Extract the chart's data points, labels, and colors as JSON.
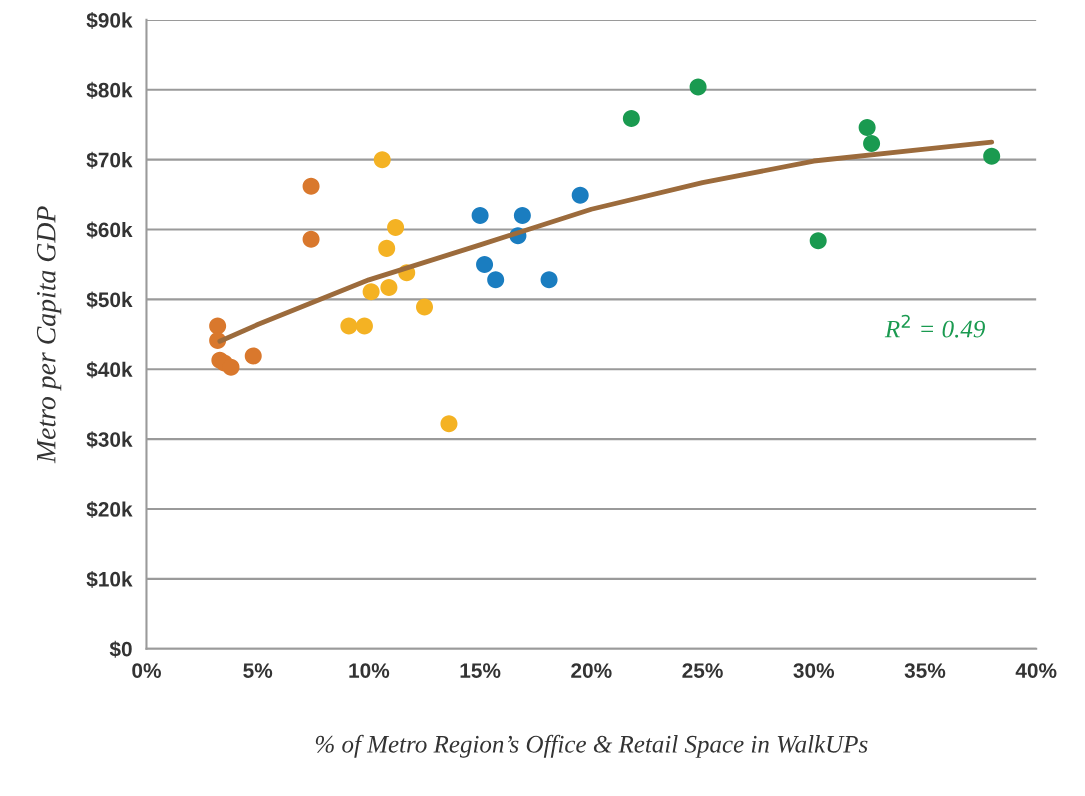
{
  "chart_data": {
    "type": "scatter",
    "xlabel": "% of Metro Region’s Office & Retail Space in WalkUPs",
    "ylabel": "Metro per Capita GDP",
    "annotations": [
      "R$^{2}$ = 0.49"
    ],
    "series": [
      {
        "color": "#d9782d",
        "x": [
          3.2,
          3.2,
          3.3,
          3.5,
          3.8,
          4.8,
          7.4,
          7.4
        ],
        "values": [
          46.2,
          44.1,
          41.3,
          40.9,
          40.3,
          41.9,
          66.2,
          58.6
        ]
      },
      {
        "color": "#f4b223",
        "x": [
          10.6,
          11.2,
          10.8,
          11.7,
          10.1,
          10.9,
          12.5,
          9.1,
          9.8,
          13.6
        ],
        "values": [
          70.0,
          60.3,
          57.3,
          53.8,
          51.1,
          51.7,
          48.9,
          46.2,
          46.2,
          32.2
        ]
      },
      {
        "color": "#1a7dc0",
        "x": [
          15.0,
          15.2,
          15.7,
          16.7,
          16.9,
          18.1,
          19.5
        ],
        "values": [
          62.0,
          55.0,
          52.8,
          59.1,
          62.0,
          52.8,
          64.9
        ]
      },
      {
        "color": "#1a9a50",
        "x": [
          21.8,
          24.8,
          30.2,
          32.4,
          32.6,
          38.0
        ],
        "values": [
          75.9,
          80.4,
          58.4,
          74.6,
          72.3,
          70.5
        ]
      },
      {
        "type": "line",
        "color": "#9c6b3c",
        "marker": "none",
        "x": [
          3.3,
          5,
          10,
          15,
          20,
          25,
          30,
          35,
          38
        ],
        "values": [
          44.0,
          46.4,
          52.8,
          57.8,
          62.9,
          66.7,
          69.8,
          71.5,
          72.5
        ]
      }
    ],
    "xlim": [
      0,
      40
    ],
    "xticks": [
      {
        "value": 0,
        "label": "0%"
      },
      {
        "value": 5,
        "label": "5%"
      },
      {
        "value": 10,
        "label": "10%"
      },
      {
        "value": 15,
        "label": "15%"
      },
      {
        "value": 20,
        "label": "20%"
      },
      {
        "value": 25,
        "label": "25%"
      },
      {
        "value": 30,
        "label": "30%"
      },
      {
        "value": 35,
        "label": "35%"
      },
      {
        "value": 40,
        "label": "40%"
      }
    ],
    "ylim": [
      0,
      90
    ],
    "yticks": [
      {
        "value": 0,
        "label": "$0"
      },
      {
        "value": 10,
        "label": "$10k"
      },
      {
        "value": 20,
        "label": "$20k"
      },
      {
        "value": 30,
        "label": "$30k"
      },
      {
        "value": 40,
        "label": "$40k"
      },
      {
        "value": 50,
        "label": "$50k"
      },
      {
        "value": 60,
        "label": "$60k"
      },
      {
        "value": 70,
        "label": "$70k"
      },
      {
        "value": 80,
        "label": "$80k"
      },
      {
        "value": 90,
        "label": "$90k"
      }
    ],
    "grid": "y",
    "marker": "circle",
    "legend": false
  }
}
